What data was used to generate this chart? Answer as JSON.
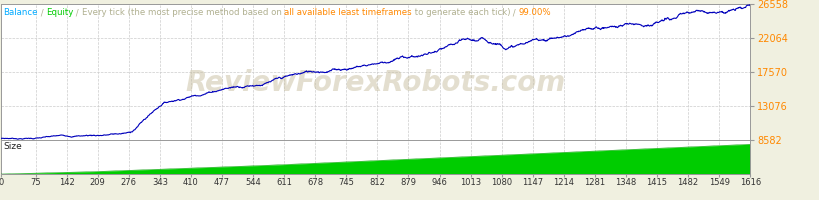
{
  "title_parts": [
    {
      "text": "Balance",
      "color": "#00aaff"
    },
    {
      "text": " / ",
      "color": "#b0b090"
    },
    {
      "text": "Equity",
      "color": "#00cc00"
    },
    {
      "text": " / ",
      "color": "#b0b090"
    },
    {
      "text": "Every tick (the most precise method based on ",
      "color": "#b0b090"
    },
    {
      "text": "all available least timeframes",
      "color": "#ff8800"
    },
    {
      "text": " to generate each tick)",
      "color": "#b0b090"
    },
    {
      "text": " / ",
      "color": "#b0b090"
    },
    {
      "text": "99.00%",
      "color": "#ff8800"
    }
  ],
  "watermark": "ReviewForexRobots.com",
  "watermark_color": "#c8bfa0",
  "watermark_alpha": 0.5,
  "bg_color": "#f0f0e0",
  "plot_bg_color": "#ffffff",
  "border_color": "#999999",
  "grid_color": "#cccccc",
  "line_color": "#0000bb",
  "line_width": 0.8,
  "size_fill_color": "#00cc00",
  "size_fill_edge": "#009900",
  "y_ticks": [
    8582,
    13076,
    17570,
    22064,
    26558
  ],
  "y_tick_color": "#ff8800",
  "x_ticks": [
    0,
    75,
    142,
    209,
    276,
    343,
    410,
    477,
    544,
    611,
    678,
    745,
    812,
    879,
    946,
    1013,
    1080,
    1147,
    1214,
    1281,
    1348,
    1415,
    1482,
    1549,
    1616
  ],
  "x_max": 1616,
  "y_min": 8582,
  "y_max": 26558,
  "size_label": "Size",
  "title_fontsize": 6.2,
  "ytick_fontsize": 7.0,
  "xtick_fontsize": 6.0,
  "watermark_fontsize": 20
}
